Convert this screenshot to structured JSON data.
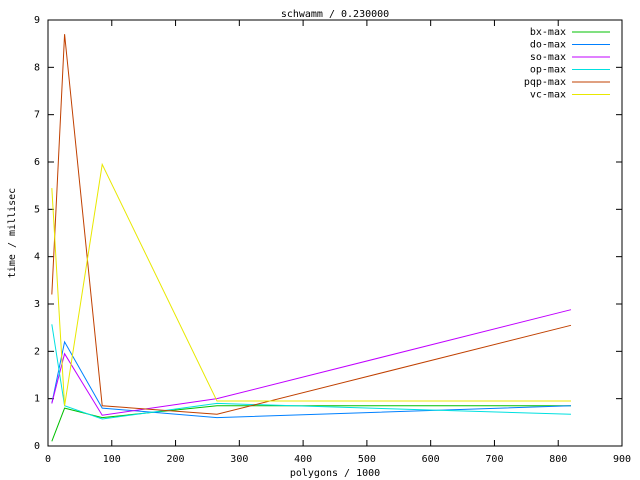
{
  "chart_data": {
    "type": "line",
    "title": "schwamm / 0.230000",
    "x_label": "polygons / 1000",
    "y_label": "time / millisec",
    "x": [
      6,
      26,
      85,
      265,
      820
    ],
    "series": [
      {
        "name": "bx-max",
        "color": "#00c000",
        "values": [
          0.1,
          0.8,
          0.6,
          0.85,
          0.85
        ]
      },
      {
        "name": "do-max",
        "color": "#0080ff",
        "values": [
          0.9,
          2.2,
          0.8,
          0.6,
          0.85
        ]
      },
      {
        "name": "so-max",
        "color": "#c000ff",
        "values": [
          0.9,
          1.95,
          0.65,
          1.0,
          2.88
        ]
      },
      {
        "name": "op-max",
        "color": "#00e0e0",
        "values": [
          2.57,
          0.85,
          0.57,
          0.9,
          0.67
        ]
      },
      {
        "name": "pqp-max",
        "color": "#c04000",
        "values": [
          3.2,
          8.7,
          0.85,
          0.67,
          2.55
        ]
      },
      {
        "name": "vc-max",
        "color": "#e8e800",
        "values": [
          5.45,
          0.85,
          5.95,
          0.95,
          0.95
        ]
      }
    ],
    "xlim": [
      0,
      900
    ],
    "ylim": [
      0,
      9
    ],
    "xticks": [
      0,
      100,
      200,
      300,
      400,
      500,
      600,
      700,
      800,
      900
    ],
    "yticks": [
      0,
      1,
      2,
      3,
      4,
      5,
      6,
      7,
      8,
      9
    ],
    "legend": "top-right"
  }
}
